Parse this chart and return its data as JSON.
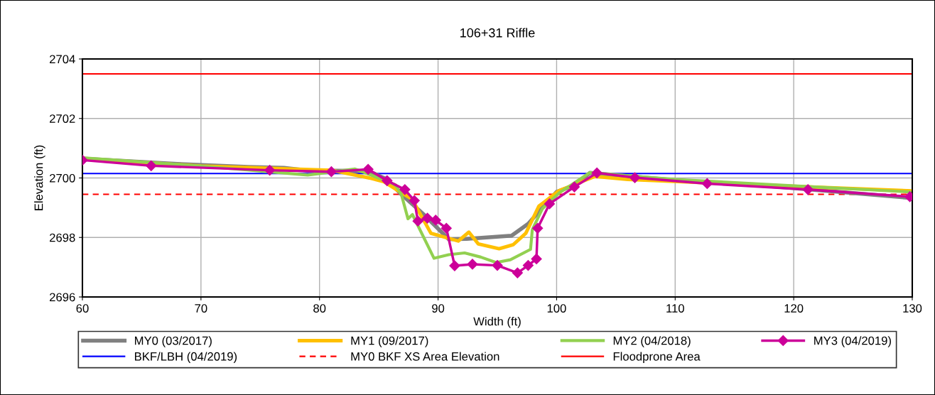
{
  "chart_data": {
    "type": "line",
    "title": "106+31 Riffle",
    "xlabel": "Width (ft)",
    "ylabel": "Elevation (ft)",
    "xlim": [
      60,
      130
    ],
    "xticks": [
      60,
      70,
      80,
      90,
      100,
      110,
      120,
      130
    ],
    "ylim": [
      2696,
      2704
    ],
    "yticks": [
      2696,
      2698,
      2700,
      2702,
      2704
    ],
    "grid": true,
    "legend": "bottom",
    "series": [
      {
        "name": "MY0 (03/2017)",
        "color": "#808080",
        "marker": "none",
        "x": [
          60,
          68,
          74,
          77,
          79,
          84.1,
          85.7,
          86.8,
          88.8,
          90.9,
          92.4,
          96.2,
          97.6,
          100,
          101.6,
          102.8,
          110,
          117.8,
          129.8
        ],
        "values": [
          2700.65,
          2700.47,
          2700.37,
          2700.34,
          2700.25,
          2700.24,
          2699.95,
          2699.49,
          2698.77,
          2697.94,
          2697.95,
          2698.06,
          2698.46,
          2699.53,
          2699.77,
          2700.17,
          2699.92,
          2699.73,
          2699.33
        ]
      },
      {
        "name": "MY1 (09/2017)",
        "color": "#ffc000",
        "marker": "none",
        "x": [
          60,
          70,
          81,
          84.2,
          85.4,
          86.8,
          87.8,
          89.4,
          91.7,
          92.6,
          93.4,
          95.15,
          96.35,
          97.4,
          98.5,
          100.2,
          103.2,
          106,
          118,
          129.8
        ],
        "values": [
          2700.65,
          2700.4,
          2700.26,
          2700.0,
          2699.88,
          2699.53,
          2699.29,
          2698.14,
          2697.88,
          2698.18,
          2697.78,
          2697.62,
          2697.76,
          2698.14,
          2699.05,
          2699.57,
          2700.05,
          2699.95,
          2699.75,
          2699.57
        ]
      },
      {
        "name": "MY2 (04/2018)",
        "color": "#92d050",
        "marker": "none",
        "x": [
          60,
          70,
          79,
          83,
          84.2,
          86.4,
          86.9,
          87.46,
          87.84,
          89.66,
          90.9,
          92.24,
          93.6,
          94.9,
          96.1,
          97.8,
          97.95,
          98.8,
          100.2,
          102.8,
          110,
          129.8
        ],
        "values": [
          2700.68,
          2700.4,
          2700.1,
          2700.3,
          2700.12,
          2699.77,
          2699.45,
          2698.63,
          2698.77,
          2697.3,
          2697.42,
          2697.48,
          2697.34,
          2697.16,
          2697.25,
          2697.6,
          2698.26,
          2698.97,
          2699.49,
          2700.18,
          2699.95,
          2699.53
        ]
      },
      {
        "name": "MY3 (04/2019)",
        "color": "#cc0099",
        "marker": "diamond",
        "x": [
          60,
          65.8,
          75.8,
          81,
          84.1,
          85.7,
          87.2,
          88,
          88.3,
          89.1,
          89.8,
          90.7,
          91.4,
          92.9,
          95,
          96.7,
          97.6,
          98.3,
          98.4,
          99.4,
          101.5,
          103.4,
          106.6,
          112.7,
          121.2,
          129.8
        ],
        "values": [
          2700.6,
          2700.41,
          2700.26,
          2700.21,
          2700.29,
          2699.91,
          2699.61,
          2699.24,
          2698.55,
          2698.65,
          2698.58,
          2698.31,
          2697.05,
          2697.1,
          2697.06,
          2696.81,
          2697.06,
          2697.28,
          2698.31,
          2699.13,
          2699.7,
          2700.17,
          2700.01,
          2699.81,
          2699.61,
          2699.37
        ]
      }
    ],
    "ref_lines": [
      {
        "axis": "y",
        "value": 2700.15,
        "label": "BKF/LBH (04/2019)",
        "color": "#0000ff",
        "line_style": "solid"
      },
      {
        "axis": "y",
        "value": 2699.45,
        "label": "MY0 BKF XS Area Elevation",
        "color": "#ff0000",
        "line_style": "dashed"
      },
      {
        "axis": "y",
        "value": 2703.5,
        "label": "Floodprone Area",
        "color": "#ff0000",
        "line_style": "solid"
      }
    ]
  }
}
